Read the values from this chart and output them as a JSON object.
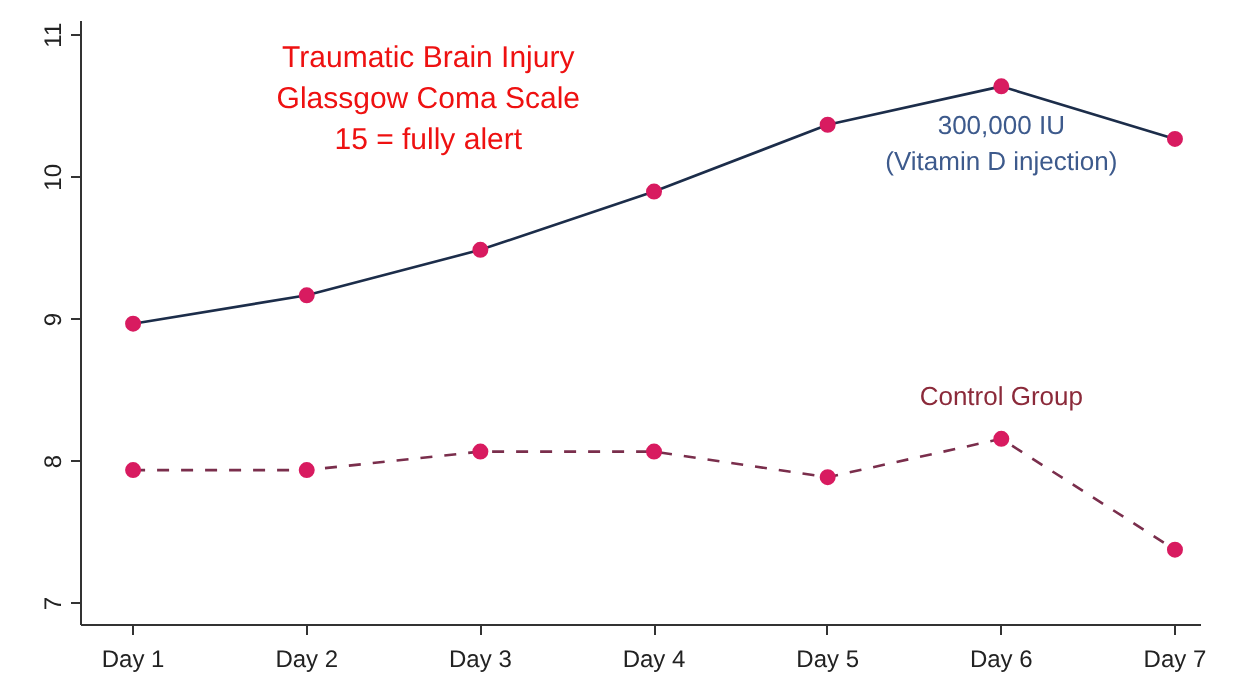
{
  "chart_data": {
    "type": "line",
    "title": "Traumatic Brain Injury\nGlassgow Coma Scale\n15 = fully alert",
    "categories": [
      "Day 1",
      "Day 2",
      "Day 3",
      "Day 4",
      "Day 5",
      "Day 6",
      "Day 7"
    ],
    "series": [
      {
        "name": "300,000 IU\n(Vitamin D injection)",
        "color": "#1c2d4a",
        "values": [
          8.97,
          9.17,
          9.49,
          9.9,
          10.37,
          10.64,
          10.27
        ],
        "line_style": "solid"
      },
      {
        "name": "Control Group",
        "color": "#7a2e4c",
        "values": [
          7.94,
          7.94,
          8.07,
          8.07,
          7.89,
          8.16,
          7.38
        ],
        "line_style": "dashed"
      }
    ],
    "ylim": [
      6.85,
      11.1
    ],
    "yticks": [
      7,
      8,
      9,
      10,
      11
    ],
    "grid": false,
    "marker": "circle"
  }
}
